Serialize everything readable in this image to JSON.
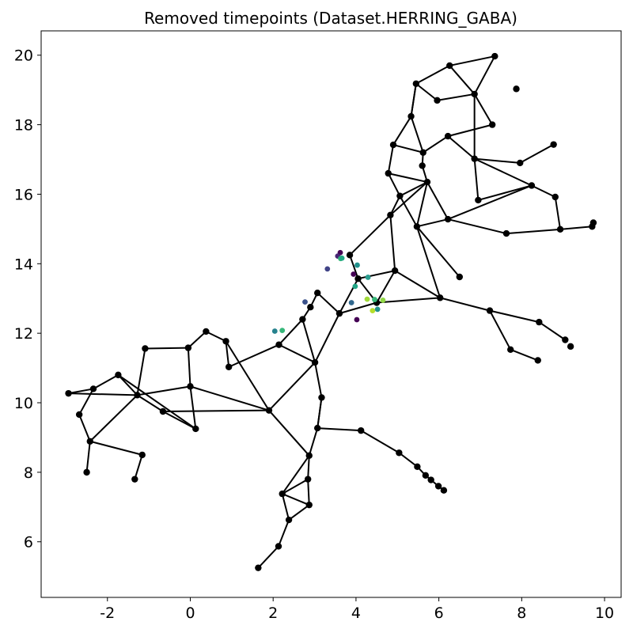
{
  "chart_data": {
    "type": "scatter",
    "title": "Removed timepoints (Dataset.HERRING_GABA)",
    "xlabel": "",
    "ylabel": "",
    "xlim": [
      -3.6,
      10.4
    ],
    "ylim": [
      4.4,
      20.7
    ],
    "x_ticks": [
      -2,
      0,
      2,
      4,
      6,
      8,
      10
    ],
    "y_ticks": [
      6,
      8,
      10,
      12,
      14,
      16,
      18,
      20
    ],
    "grid": false,
    "legend": "none",
    "edge_color": "#000000",
    "node_color": "#000000",
    "nodes": [
      {
        "x": 1.64,
        "y": 5.25
      },
      {
        "x": 2.13,
        "y": 5.87
      },
      {
        "x": 2.38,
        "y": 6.63
      },
      {
        "x": 2.22,
        "y": 7.38
      },
      {
        "x": 2.87,
        "y": 7.06
      },
      {
        "x": 2.84,
        "y": 7.8
      },
      {
        "x": 2.87,
        "y": 8.48
      },
      {
        "x": 3.07,
        "y": 9.27
      },
      {
        "x": 3.17,
        "y": 10.15
      },
      {
        "x": 3.01,
        "y": 11.16
      },
      {
        "x": 2.14,
        "y": 11.67
      },
      {
        "x": 2.71,
        "y": 12.4
      },
      {
        "x": 2.9,
        "y": 12.75
      },
      {
        "x": 3.07,
        "y": 13.16
      },
      {
        "x": 3.6,
        "y": 12.57
      },
      {
        "x": 4.05,
        "y": 13.57
      },
      {
        "x": 4.5,
        "y": 12.88
      },
      {
        "x": 3.85,
        "y": 14.25
      },
      {
        "x": 4.94,
        "y": 13.8
      },
      {
        "x": 6.03,
        "y": 13.02
      },
      {
        "x": 6.5,
        "y": 13.62
      },
      {
        "x": 4.83,
        "y": 15.4
      },
      {
        "x": 5.06,
        "y": 15.95
      },
      {
        "x": 5.47,
        "y": 15.07
      },
      {
        "x": 5.72,
        "y": 16.35
      },
      {
        "x": 4.78,
        "y": 16.6
      },
      {
        "x": 4.9,
        "y": 17.42
      },
      {
        "x": 5.62,
        "y": 17.2
      },
      {
        "x": 5.6,
        "y": 16.82
      },
      {
        "x": 6.22,
        "y": 17.67
      },
      {
        "x": 5.33,
        "y": 18.24
      },
      {
        "x": 5.45,
        "y": 19.18
      },
      {
        "x": 5.96,
        "y": 18.7
      },
      {
        "x": 6.26,
        "y": 19.7
      },
      {
        "x": 6.86,
        "y": 18.88
      },
      {
        "x": 7.29,
        "y": 18.0
      },
      {
        "x": 6.86,
        "y": 17.02
      },
      {
        "x": 6.95,
        "y": 15.83
      },
      {
        "x": 6.22,
        "y": 15.28
      },
      {
        "x": 7.63,
        "y": 14.87
      },
      {
        "x": 7.35,
        "y": 19.97
      },
      {
        "x": 7.87,
        "y": 19.03
      },
      {
        "x": 7.96,
        "y": 16.9
      },
      {
        "x": 8.77,
        "y": 17.43
      },
      {
        "x": 8.24,
        "y": 16.25
      },
      {
        "x": 8.81,
        "y": 15.92
      },
      {
        "x": 8.93,
        "y": 14.99
      },
      {
        "x": 9.7,
        "y": 15.07
      },
      {
        "x": 9.73,
        "y": 15.18
      },
      {
        "x": 7.23,
        "y": 12.65
      },
      {
        "x": 8.42,
        "y": 12.32
      },
      {
        "x": 7.73,
        "y": 11.53
      },
      {
        "x": 8.39,
        "y": 11.22
      },
      {
        "x": 9.05,
        "y": 11.81
      },
      {
        "x": 9.18,
        "y": 11.62
      },
      {
        "x": 4.12,
        "y": 9.2
      },
      {
        "x": 5.04,
        "y": 8.56
      },
      {
        "x": 5.48,
        "y": 8.16
      },
      {
        "x": 5.68,
        "y": 7.91
      },
      {
        "x": 5.81,
        "y": 7.78
      },
      {
        "x": 5.99,
        "y": 7.6
      },
      {
        "x": 6.12,
        "y": 7.48
      },
      {
        "x": 0.93,
        "y": 11.03
      },
      {
        "x": 0.86,
        "y": 11.77
      },
      {
        "x": 0.38,
        "y": 12.05
      },
      {
        "x": -0.05,
        "y": 11.58
      },
      {
        "x": -1.09,
        "y": 11.56
      },
      {
        "x": 0.0,
        "y": 10.47
      },
      {
        "x": 0.13,
        "y": 9.25
      },
      {
        "x": 1.9,
        "y": 9.78
      },
      {
        "x": -0.66,
        "y": 9.75
      },
      {
        "x": -1.28,
        "y": 10.22
      },
      {
        "x": -1.74,
        "y": 10.8
      },
      {
        "x": -2.34,
        "y": 10.4
      },
      {
        "x": -2.94,
        "y": 10.27
      },
      {
        "x": -2.68,
        "y": 9.66
      },
      {
        "x": -2.42,
        "y": 8.89
      },
      {
        "x": -1.16,
        "y": 8.5
      },
      {
        "x": -1.34,
        "y": 7.8
      },
      {
        "x": -2.5,
        "y": 8.0
      }
    ],
    "edges": [
      [
        0,
        1
      ],
      [
        1,
        2
      ],
      [
        2,
        3
      ],
      [
        2,
        4
      ],
      [
        3,
        4
      ],
      [
        3,
        5
      ],
      [
        3,
        6
      ],
      [
        5,
        6
      ],
      [
        5,
        4
      ],
      [
        6,
        7
      ],
      [
        7,
        8
      ],
      [
        8,
        9
      ],
      [
        9,
        10
      ],
      [
        10,
        11
      ],
      [
        11,
        12
      ],
      [
        12,
        13
      ],
      [
        11,
        9
      ],
      [
        9,
        14
      ],
      [
        13,
        14
      ],
      [
        14,
        15
      ],
      [
        14,
        16
      ],
      [
        15,
        16
      ],
      [
        15,
        17
      ],
      [
        15,
        18
      ],
      [
        18,
        16
      ],
      [
        16,
        19
      ],
      [
        18,
        19
      ],
      [
        18,
        21
      ],
      [
        17,
        21
      ],
      [
        19,
        23
      ],
      [
        23,
        20
      ],
      [
        21,
        22
      ],
      [
        22,
        23
      ],
      [
        21,
        24
      ],
      [
        22,
        24
      ],
      [
        24,
        23
      ],
      [
        22,
        25
      ],
      [
        25,
        26
      ],
      [
        25,
        24
      ],
      [
        26,
        27
      ],
      [
        27,
        28
      ],
      [
        28,
        24
      ],
      [
        27,
        29
      ],
      [
        26,
        30
      ],
      [
        30,
        27
      ],
      [
        30,
        31
      ],
      [
        31,
        33
      ],
      [
        31,
        32
      ],
      [
        32,
        34
      ],
      [
        33,
        34
      ],
      [
        33,
        40
      ],
      [
        40,
        34
      ],
      [
        34,
        36
      ],
      [
        34,
        35
      ],
      [
        35,
        29
      ],
      [
        29,
        36
      ],
      [
        36,
        37
      ],
      [
        37,
        44
      ],
      [
        36,
        44
      ],
      [
        36,
        42
      ],
      [
        42,
        43
      ],
      [
        44,
        45
      ],
      [
        45,
        46
      ],
      [
        46,
        39
      ],
      [
        46,
        47
      ],
      [
        39,
        38
      ],
      [
        38,
        44
      ],
      [
        24,
        38
      ],
      [
        38,
        23
      ],
      [
        19,
        49
      ],
      [
        49,
        50
      ],
      [
        49,
        51
      ],
      [
        50,
        53
      ],
      [
        51,
        52
      ],
      [
        8,
        7
      ],
      [
        7,
        55
      ],
      [
        55,
        56
      ],
      [
        56,
        57
      ],
      [
        57,
        58
      ],
      [
        58,
        59
      ],
      [
        59,
        60
      ],
      [
        60,
        61
      ],
      [
        6,
        69
      ],
      [
        69,
        9
      ],
      [
        10,
        62
      ],
      [
        62,
        63
      ],
      [
        63,
        64
      ],
      [
        64,
        65
      ],
      [
        65,
        66
      ],
      [
        66,
        71
      ],
      [
        63,
        69
      ],
      [
        69,
        67
      ],
      [
        69,
        70
      ],
      [
        67,
        68
      ],
      [
        65,
        67
      ],
      [
        67,
        71
      ],
      [
        68,
        72
      ],
      [
        72,
        71
      ],
      [
        71,
        74
      ],
      [
        74,
        73
      ],
      [
        73,
        72
      ],
      [
        73,
        75
      ],
      [
        75,
        76
      ],
      [
        76,
        77
      ],
      [
        77,
        78
      ],
      [
        76,
        71
      ],
      [
        76,
        79
      ],
      [
        70,
        71
      ],
      [
        70,
        68
      ],
      [
        31,
        30
      ]
    ],
    "removed_points": [
      {
        "x": 3.62,
        "y": 14.32,
        "color": "#440154"
      },
      {
        "x": 3.56,
        "y": 14.22,
        "color": "#482475"
      },
      {
        "x": 3.31,
        "y": 13.85,
        "color": "#414487"
      },
      {
        "x": 3.63,
        "y": 14.15,
        "color": "#35b779"
      },
      {
        "x": 3.66,
        "y": 14.16,
        "color": "#22a884"
      },
      {
        "x": 3.94,
        "y": 13.7,
        "color": "#440154"
      },
      {
        "x": 4.03,
        "y": 13.96,
        "color": "#21918c"
      },
      {
        "x": 4.29,
        "y": 13.61,
        "color": "#2a9d8f"
      },
      {
        "x": 3.98,
        "y": 13.35,
        "color": "#21a585"
      },
      {
        "x": 2.77,
        "y": 12.9,
        "color": "#3b528b"
      },
      {
        "x": 3.89,
        "y": 12.88,
        "color": "#31688e"
      },
      {
        "x": 4.27,
        "y": 12.98,
        "color": "#a0da39"
      },
      {
        "x": 4.65,
        "y": 12.95,
        "color": "#8fd744"
      },
      {
        "x": 4.45,
        "y": 12.97,
        "color": "#35b779"
      },
      {
        "x": 4.4,
        "y": 12.65,
        "color": "#b5de2b"
      },
      {
        "x": 4.52,
        "y": 12.69,
        "color": "#21918c"
      },
      {
        "x": 4.02,
        "y": 12.39,
        "color": "#440154"
      },
      {
        "x": 2.04,
        "y": 12.06,
        "color": "#26828e"
      },
      {
        "x": 2.22,
        "y": 12.08,
        "color": "#35b779"
      }
    ]
  }
}
